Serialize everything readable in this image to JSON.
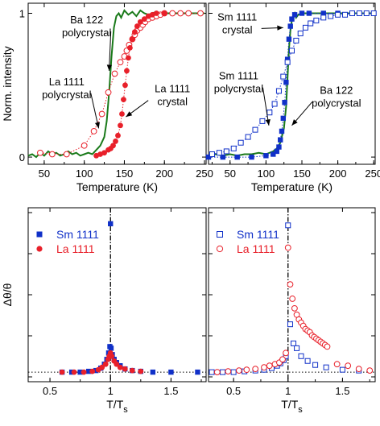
{
  "chart_data": [
    {
      "id": "a",
      "type": "line",
      "xlabel": "Temperature (K)",
      "ylabel": "Norm. intensity",
      "xlim": [
        30,
        252
      ],
      "ylim": [
        -0.05,
        1.07
      ],
      "xticks": [
        50,
        100,
        150,
        200,
        250
      ],
      "yticks": [
        0,
        1
      ],
      "legend": "none",
      "annotations": [
        {
          "text": [
            "Ba 122",
            "polycrystal"
          ],
          "at": [
            103,
            0.93
          ]
        },
        {
          "text": [
            "La 1111",
            "polycrystal"
          ],
          "at": [
            78,
            0.5
          ]
        },
        {
          "text": [
            "La 1111",
            "crystal"
          ],
          "at": [
            210,
            0.45
          ]
        }
      ],
      "series": [
        {
          "key": "ba122_poly",
          "style": "line",
          "color": "#1a7a1a",
          "x": [
            30,
            35,
            40,
            45,
            50,
            55,
            60,
            65,
            70,
            75,
            80,
            85,
            90,
            95,
            100,
            105,
            110,
            115,
            120,
            125,
            128,
            131,
            134,
            137,
            140,
            143,
            146,
            150,
            155,
            160,
            165,
            170,
            175,
            180,
            185,
            190,
            195,
            200,
            205,
            210,
            215,
            220,
            225,
            230,
            235,
            240,
            245,
            250
          ],
          "y": [
            0.01,
            0.02,
            0.0,
            0.03,
            0.01,
            0.04,
            0.02,
            0.03,
            0.01,
            0.02,
            0.04,
            0.02,
            0.03,
            0.01,
            0.02,
            0.03,
            0.02,
            0.05,
            0.08,
            0.14,
            0.25,
            0.45,
            0.7,
            0.9,
            0.98,
            1.0,
            0.97,
            1.02,
            0.99,
            1.01,
            0.98,
            1.02,
            1.0,
            0.99,
            1.0,
            1.01,
            0.99,
            1.0,
            1.0,
            1.0,
            1.0,
            1.0,
            1.0,
            1.0,
            1.0,
            1.0,
            1.0,
            1.0
          ]
        },
        {
          "key": "la1111_poly",
          "style": "open-circle",
          "color": "#e8202a",
          "dotted": true,
          "x": [
            45,
            60,
            78,
            100,
            112,
            122,
            130,
            138,
            145,
            150,
            153,
            156,
            160,
            163,
            166,
            170,
            173,
            176,
            180,
            185,
            190,
            195,
            200,
            210,
            220,
            230,
            245
          ],
          "y": [
            0.03,
            0.02,
            0.02,
            0.08,
            0.18,
            0.3,
            0.45,
            0.58,
            0.66,
            0.7,
            0.74,
            0.78,
            0.82,
            0.85,
            0.88,
            0.9,
            0.92,
            0.94,
            0.96,
            0.97,
            0.98,
            0.99,
            1.0,
            1.0,
            1.0,
            1.0,
            1.0
          ]
        },
        {
          "key": "la1111_crystal",
          "style": "filled-circle",
          "color": "#e8202a",
          "dotted": true,
          "x": [
            115,
            120,
            125,
            130,
            133,
            136,
            139,
            142,
            145,
            147,
            149,
            151,
            153,
            155,
            157,
            160,
            163,
            166,
            170,
            175,
            180,
            185,
            190,
            200
          ],
          "y": [
            0.01,
            0.02,
            0.03,
            0.05,
            0.06,
            0.08,
            0.11,
            0.15,
            0.22,
            0.3,
            0.4,
            0.5,
            0.6,
            0.69,
            0.76,
            0.82,
            0.87,
            0.91,
            0.94,
            0.96,
            0.98,
            0.99,
            1.0,
            1.0
          ]
        }
      ]
    },
    {
      "id": "b",
      "type": "line",
      "xlabel": "Temperature (K)",
      "ylabel": "",
      "xlim": [
        20,
        252
      ],
      "ylim": [
        -0.05,
        1.07
      ],
      "xticks": [
        50,
        100,
        150,
        200,
        250
      ],
      "yticks": [
        0,
        1
      ],
      "legend": "none",
      "annotations": [
        {
          "text": [
            "Sm 1111",
            "crystal"
          ],
          "at": [
            60,
            0.95
          ]
        },
        {
          "text": [
            "Sm 1111",
            "polycrystal"
          ],
          "at": [
            62,
            0.54
          ]
        },
        {
          "text": [
            "Ba 122",
            "polycrystal"
          ],
          "at": [
            198,
            0.44
          ]
        }
      ],
      "series": [
        {
          "key": "ba122_poly",
          "style": "line",
          "color": "#1a7a1a",
          "x": [
            20,
            30,
            40,
            50,
            60,
            70,
            80,
            90,
            100,
            110,
            115,
            120,
            125,
            128,
            130,
            132,
            134,
            136,
            138,
            140,
            142,
            145,
            150,
            160,
            170,
            180,
            190,
            200,
            210,
            220,
            230,
            240,
            250
          ],
          "y": [
            0.01,
            0.02,
            0.01,
            0.02,
            0.01,
            0.02,
            0.02,
            0.03,
            0.02,
            0.04,
            0.06,
            0.1,
            0.2,
            0.35,
            0.55,
            0.75,
            0.88,
            0.95,
            0.98,
            1.0,
            0.97,
            0.99,
            1.0,
            1.0,
            1.0,
            1.0,
            1.0,
            1.0,
            1.0,
            1.0,
            1.0,
            1.0,
            1.0
          ]
        },
        {
          "key": "sm1111_crystal",
          "style": "filled-square",
          "color": "#1030c8",
          "dotted": true,
          "x": [
            20,
            40,
            60,
            80,
            100,
            110,
            115,
            118,
            120,
            122,
            124,
            126,
            128,
            130,
            132,
            134,
            136,
            140,
            150,
            160,
            180,
            200,
            220,
            250
          ],
          "y": [
            0.0,
            0.0,
            0.0,
            0.0,
            0.01,
            0.02,
            0.04,
            0.07,
            0.12,
            0.18,
            0.27,
            0.38,
            0.52,
            0.68,
            0.82,
            0.91,
            0.96,
            0.99,
            1.0,
            1.0,
            1.0,
            1.0,
            1.0,
            1.0
          ]
        },
        {
          "key": "sm1111_poly",
          "style": "open-square",
          "color": "#1030c8",
          "dotted": true,
          "x": [
            25,
            35,
            45,
            55,
            65,
            75,
            85,
            95,
            105,
            112,
            118,
            124,
            130,
            136,
            142,
            148,
            155,
            162,
            170,
            180,
            190,
            200,
            210,
            220,
            230,
            240,
            250
          ],
          "y": [
            0.02,
            0.03,
            0.04,
            0.06,
            0.1,
            0.14,
            0.19,
            0.25,
            0.31,
            0.37,
            0.46,
            0.56,
            0.66,
            0.74,
            0.81,
            0.86,
            0.9,
            0.93,
            0.95,
            0.97,
            0.98,
            0.99,
            0.99,
            1.0,
            1.0,
            1.0,
            1.0
          ]
        }
      ]
    },
    {
      "id": "c",
      "type": "scatter",
      "xlabel": "T/T",
      "xlabel_sub": "s",
      "ylabel": "Δθ/θ",
      "xlim": [
        0.32,
        1.79
      ],
      "ylim": [
        -0.06,
        1.03
      ],
      "xticks": [
        0.5,
        1,
        1.5
      ],
      "xtick_labels": [
        "0.5",
        "1",
        "1.5"
      ],
      "vline": 1.0,
      "hline": 0.0,
      "legend": "top-left",
      "series": [
        {
          "name": "Sm 1111",
          "style": "filled-square",
          "color": "#1030c8",
          "x": [
            0.6,
            0.68,
            0.75,
            0.82,
            0.88,
            0.92,
            0.95,
            0.97,
            0.985,
            0.995,
            1.0,
            1.005,
            1.015,
            1.03,
            1.05,
            1.08,
            1.12,
            1.18,
            1.25,
            1.35,
            1.5,
            1.72
          ],
          "y": [
            0.0,
            0.0,
            0.0,
            0.005,
            0.01,
            0.025,
            0.05,
            0.08,
            0.12,
            0.16,
            0.93,
            0.15,
            0.11,
            0.08,
            0.06,
            0.04,
            0.02,
            0.01,
            0.005,
            0.0,
            0.0,
            0.0
          ]
        },
        {
          "name": "La 1111",
          "style": "filled-circle",
          "color": "#e8202a",
          "x": [
            0.6,
            0.7,
            0.78,
            0.85,
            0.9,
            0.93,
            0.96,
            0.98,
            0.99,
            1.0,
            1.01,
            1.03,
            1.05,
            1.08,
            1.12,
            1.18,
            1.25
          ],
          "y": [
            0.0,
            0.0,
            0.0,
            0.005,
            0.015,
            0.03,
            0.05,
            0.08,
            0.1,
            0.12,
            0.1,
            0.07,
            0.05,
            0.03,
            0.02,
            0.01,
            0.005
          ]
        }
      ]
    },
    {
      "id": "d",
      "type": "scatter",
      "xlabel": "T/T",
      "xlabel_sub": "s",
      "ylabel": "",
      "xlim": [
        0.27,
        1.8
      ],
      "ylim": [
        -0.06,
        1.03
      ],
      "xticks": [
        0.5,
        1,
        1.5
      ],
      "xtick_labels": [
        "0.5",
        "1",
        "1.5"
      ],
      "vline": 1.0,
      "hline": 0.0,
      "legend": "top-left",
      "series": [
        {
          "name": "Sm 1111",
          "style": "open-square",
          "color": "#1030c8",
          "x": [
            0.3,
            0.4,
            0.5,
            0.6,
            0.7,
            0.78,
            0.85,
            0.9,
            0.93,
            0.96,
            0.98,
            1.0,
            1.02,
            1.05,
            1.08,
            1.12,
            1.18,
            1.25,
            1.35,
            1.5,
            1.65
          ],
          "y": [
            0.0,
            0.0,
            0.0,
            0.005,
            0.01,
            0.015,
            0.025,
            0.04,
            0.055,
            0.075,
            0.1,
            0.92,
            0.3,
            0.18,
            0.15,
            0.1,
            0.07,
            0.045,
            0.03,
            0.015,
            0.01
          ]
        },
        {
          "name": "La 1111",
          "style": "open-circle",
          "color": "#e8202a",
          "x": [
            0.35,
            0.45,
            0.55,
            0.62,
            0.7,
            0.78,
            0.83,
            0.88,
            0.92,
            0.95,
            0.98,
            1.0,
            1.02,
            1.04,
            1.06,
            1.08,
            1.1,
            1.12,
            1.14,
            1.16,
            1.18,
            1.2,
            1.22,
            1.24,
            1.26,
            1.28,
            1.3,
            1.32,
            1.34,
            1.36,
            1.45,
            1.55,
            1.65,
            1.75
          ],
          "y": [
            0.0,
            0.005,
            0.01,
            0.015,
            0.02,
            0.03,
            0.04,
            0.05,
            0.06,
            0.08,
            0.12,
            0.78,
            0.55,
            0.46,
            0.4,
            0.36,
            0.33,
            0.31,
            0.29,
            0.27,
            0.26,
            0.25,
            0.23,
            0.22,
            0.21,
            0.2,
            0.19,
            0.18,
            0.17,
            0.16,
            0.05,
            0.04,
            0.02,
            0.01
          ]
        }
      ]
    }
  ]
}
